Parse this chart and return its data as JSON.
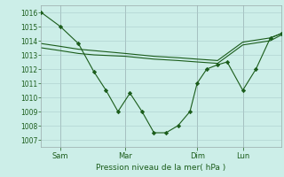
{
  "background_color": "#cceee8",
  "grid_color": "#aacccc",
  "line_color": "#1a5c1a",
  "xlabel": "Pression niveau de la mer( hPa )",
  "ylim": [
    1006.5,
    1016.5
  ],
  "yticks": [
    1007,
    1008,
    1009,
    1010,
    1011,
    1012,
    1013,
    1014,
    1015,
    1016
  ],
  "xtick_labels": [
    "Sam",
    "Mar",
    "Dim",
    "Lun"
  ],
  "xtick_positions": [
    0.08,
    0.35,
    0.65,
    0.84
  ],
  "series1_x": [
    0.0,
    0.08,
    0.155,
    0.22,
    0.27,
    0.32,
    0.37,
    0.42,
    0.47,
    0.52,
    0.57,
    0.62,
    0.65,
    0.69,
    0.735,
    0.775,
    0.84,
    0.895,
    0.955,
    1.0
  ],
  "series1_y": [
    1016.0,
    1015.0,
    1013.8,
    1011.8,
    1010.5,
    1009.0,
    1010.3,
    1009.0,
    1007.5,
    1007.5,
    1008.0,
    1009.0,
    1011.0,
    1012.0,
    1012.3,
    1012.5,
    1010.5,
    1012.0,
    1014.2,
    1014.5
  ],
  "series2_x": [
    0.0,
    0.08,
    0.155,
    0.22,
    0.35,
    0.47,
    0.57,
    0.65,
    0.735,
    0.84,
    0.955,
    1.0
  ],
  "series2_y": [
    1013.8,
    1013.6,
    1013.4,
    1013.3,
    1013.1,
    1012.9,
    1012.8,
    1012.7,
    1012.6,
    1013.9,
    1014.2,
    1014.5
  ],
  "series3_x": [
    0.0,
    0.08,
    0.155,
    0.22,
    0.35,
    0.47,
    0.57,
    0.65,
    0.735,
    0.84,
    0.955,
    1.0
  ],
  "series3_y": [
    1013.5,
    1013.3,
    1013.1,
    1013.0,
    1012.9,
    1012.7,
    1012.6,
    1012.5,
    1012.4,
    1013.7,
    1014.0,
    1014.4
  ]
}
